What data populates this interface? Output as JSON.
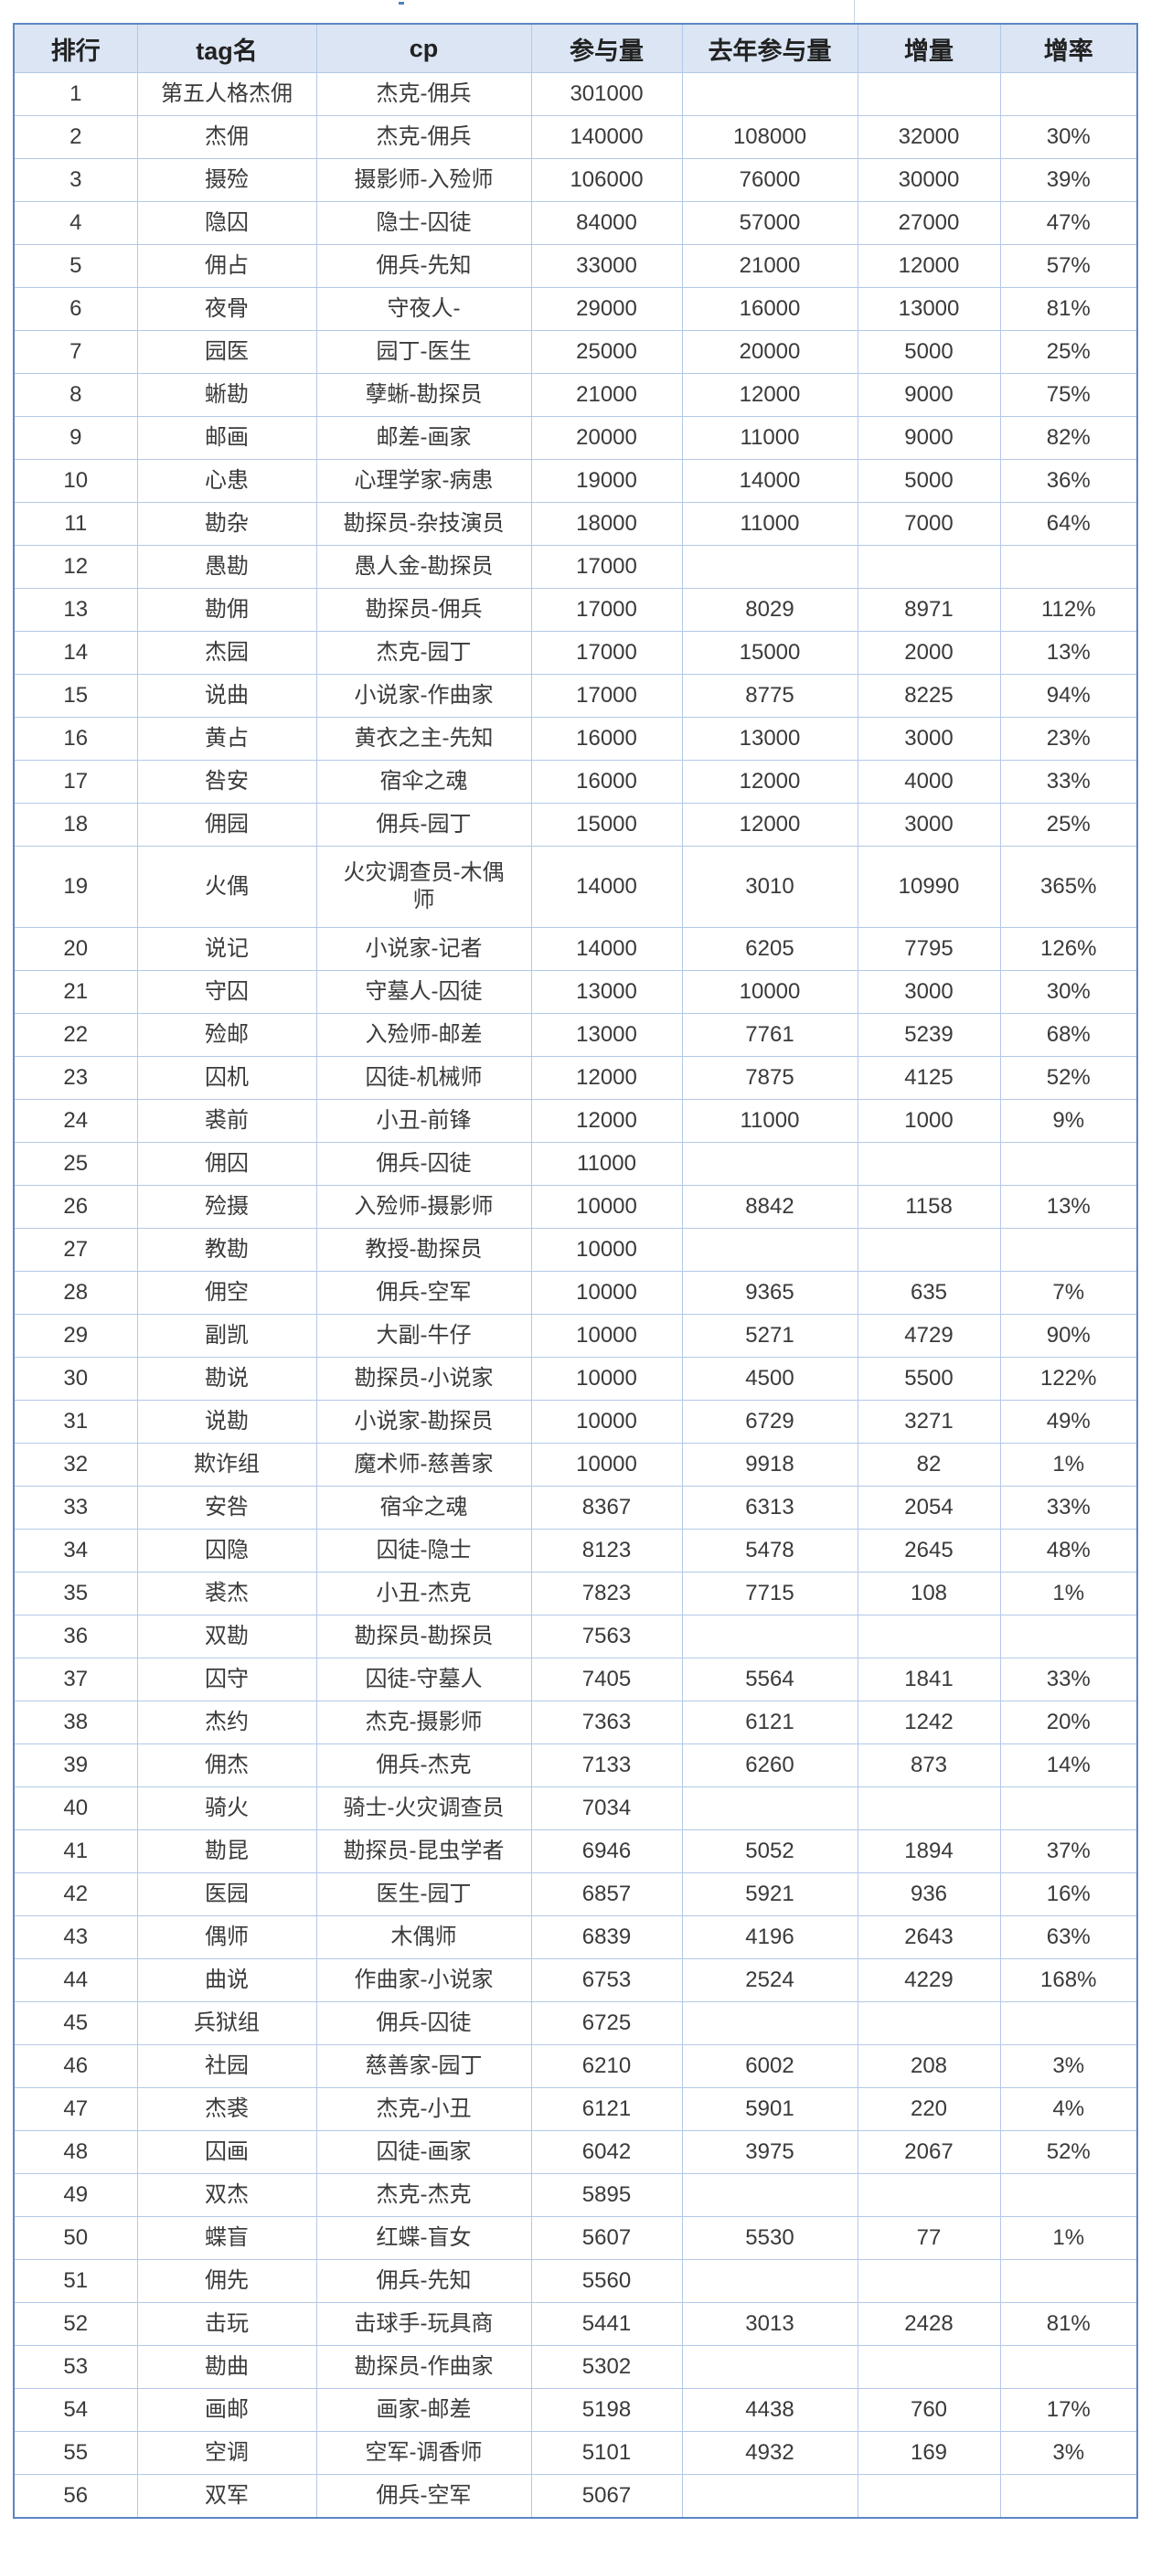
{
  "table": {
    "headers": [
      "排行",
      "tag名",
      "cp",
      "参与量",
      "去年参与量",
      "增量",
      "增率"
    ],
    "rows": [
      [
        "1",
        "第五人格杰佣",
        "杰克-佣兵",
        "301000",
        "",
        "",
        ""
      ],
      [
        "2",
        "杰佣",
        "杰克-佣兵",
        "140000",
        "108000",
        "32000",
        "30%"
      ],
      [
        "3",
        "摄殓",
        "摄影师-入殓师",
        "106000",
        "76000",
        "30000",
        "39%"
      ],
      [
        "4",
        "隐囚",
        "隐士-囚徒",
        "84000",
        "57000",
        "27000",
        "47%"
      ],
      [
        "5",
        "佣占",
        "佣兵-先知",
        "33000",
        "21000",
        "12000",
        "57%"
      ],
      [
        "6",
        "夜骨",
        "守夜人-",
        "29000",
        "16000",
        "13000",
        "81%"
      ],
      [
        "7",
        "园医",
        "园丁-医生",
        "25000",
        "20000",
        "5000",
        "25%"
      ],
      [
        "8",
        "蜥勘",
        "孽蜥-勘探员",
        "21000",
        "12000",
        "9000",
        "75%"
      ],
      [
        "9",
        "邮画",
        "邮差-画家",
        "20000",
        "11000",
        "9000",
        "82%"
      ],
      [
        "10",
        "心患",
        "心理学家-病患",
        "19000",
        "14000",
        "5000",
        "36%"
      ],
      [
        "11",
        "勘杂",
        "勘探员-杂技演员",
        "18000",
        "11000",
        "7000",
        "64%"
      ],
      [
        "12",
        "愚勘",
        "愚人金-勘探员",
        "17000",
        "",
        "",
        ""
      ],
      [
        "13",
        "勘佣",
        "勘探员-佣兵",
        "17000",
        "8029",
        "8971",
        "112%"
      ],
      [
        "14",
        "杰园",
        "杰克-园丁",
        "17000",
        "15000",
        "2000",
        "13%"
      ],
      [
        "15",
        "说曲",
        "小说家-作曲家",
        "17000",
        "8775",
        "8225",
        "94%"
      ],
      [
        "16",
        "黄占",
        "黄衣之主-先知",
        "16000",
        "13000",
        "3000",
        "23%"
      ],
      [
        "17",
        "咎安",
        "宿伞之魂",
        "16000",
        "12000",
        "4000",
        "33%"
      ],
      [
        "18",
        "佣园",
        "佣兵-园丁",
        "15000",
        "12000",
        "3000",
        "25%"
      ],
      [
        "19",
        "火偶",
        "火灾调查员-木偶师",
        "14000",
        "3010",
        "10990",
        "365%"
      ],
      [
        "20",
        "说记",
        "小说家-记者",
        "14000",
        "6205",
        "7795",
        "126%"
      ],
      [
        "21",
        "守囚",
        "守墓人-囚徒",
        "13000",
        "10000",
        "3000",
        "30%"
      ],
      [
        "22",
        "殓邮",
        "入殓师-邮差",
        "13000",
        "7761",
        "5239",
        "68%"
      ],
      [
        "23",
        "囚机",
        "囚徒-机械师",
        "12000",
        "7875",
        "4125",
        "52%"
      ],
      [
        "24",
        "裘前",
        "小丑-前锋",
        "12000",
        "11000",
        "1000",
        "9%"
      ],
      [
        "25",
        "佣囚",
        "佣兵-囚徒",
        "11000",
        "",
        "",
        ""
      ],
      [
        "26",
        "殓摄",
        "入殓师-摄影师",
        "10000",
        "8842",
        "1158",
        "13%"
      ],
      [
        "27",
        "教勘",
        "教授-勘探员",
        "10000",
        "",
        "",
        ""
      ],
      [
        "28",
        "佣空",
        "佣兵-空军",
        "10000",
        "9365",
        "635",
        "7%"
      ],
      [
        "29",
        "副凯",
        "大副-牛仔",
        "10000",
        "5271",
        "4729",
        "90%"
      ],
      [
        "30",
        "勘说",
        "勘探员-小说家",
        "10000",
        "4500",
        "5500",
        "122%"
      ],
      [
        "31",
        "说勘",
        "小说家-勘探员",
        "10000",
        "6729",
        "3271",
        "49%"
      ],
      [
        "32",
        "欺诈组",
        "魔术师-慈善家",
        "10000",
        "9918",
        "82",
        "1%"
      ],
      [
        "33",
        "安咎",
        "宿伞之魂",
        "8367",
        "6313",
        "2054",
        "33%"
      ],
      [
        "34",
        "囚隐",
        "囚徒-隐士",
        "8123",
        "5478",
        "2645",
        "48%"
      ],
      [
        "35",
        "裘杰",
        "小丑-杰克",
        "7823",
        "7715",
        "108",
        "1%"
      ],
      [
        "36",
        "双勘",
        "勘探员-勘探员",
        "7563",
        "",
        "",
        ""
      ],
      [
        "37",
        "囚守",
        "囚徒-守墓人",
        "7405",
        "5564",
        "1841",
        "33%"
      ],
      [
        "38",
        "杰约",
        "杰克-摄影师",
        "7363",
        "6121",
        "1242",
        "20%"
      ],
      [
        "39",
        "佣杰",
        "佣兵-杰克",
        "7133",
        "6260",
        "873",
        "14%"
      ],
      [
        "40",
        "骑火",
        "骑士-火灾调查员",
        "7034",
        "",
        "",
        ""
      ],
      [
        "41",
        "勘昆",
        "勘探员-昆虫学者",
        "6946",
        "5052",
        "1894",
        "37%"
      ],
      [
        "42",
        "医园",
        "医生-园丁",
        "6857",
        "5921",
        "936",
        "16%"
      ],
      [
        "43",
        "偶师",
        "木偶师",
        "6839",
        "4196",
        "2643",
        "63%"
      ],
      [
        "44",
        "曲说",
        "作曲家-小说家",
        "6753",
        "2524",
        "4229",
        "168%"
      ],
      [
        "45",
        "兵狱组",
        "佣兵-囚徒",
        "6725",
        "",
        "",
        ""
      ],
      [
        "46",
        "社园",
        "慈善家-园丁",
        "6210",
        "6002",
        "208",
        "3%"
      ],
      [
        "47",
        "杰裘",
        "杰克-小丑",
        "6121",
        "5901",
        "220",
        "4%"
      ],
      [
        "48",
        "囚画",
        "囚徒-画家",
        "6042",
        "3975",
        "2067",
        "52%"
      ],
      [
        "49",
        "双杰",
        "杰克-杰克",
        "5895",
        "",
        "",
        ""
      ],
      [
        "50",
        "蝶盲",
        "红蝶-盲女",
        "5607",
        "5530",
        "77",
        "1%"
      ],
      [
        "51",
        "佣先",
        "佣兵-先知",
        "5560",
        "",
        "",
        ""
      ],
      [
        "52",
        "击玩",
        "击球手-玩具商",
        "5441",
        "3013",
        "2428",
        "81%"
      ],
      [
        "53",
        "勘曲",
        "勘探员-作曲家",
        "5302",
        "",
        "",
        ""
      ],
      [
        "54",
        "画邮",
        "画家-邮差",
        "5198",
        "4438",
        "760",
        "17%"
      ],
      [
        "55",
        "空调",
        "空军-调香师",
        "5101",
        "4932",
        "169",
        "3%"
      ],
      [
        "56",
        "双军",
        "佣兵-空军",
        "5067",
        "",
        "",
        ""
      ]
    ]
  },
  "colors": {
    "header_bg": "#dbe5f4",
    "border": "#b3c8e8",
    "outer_border": "#5b86c5"
  }
}
